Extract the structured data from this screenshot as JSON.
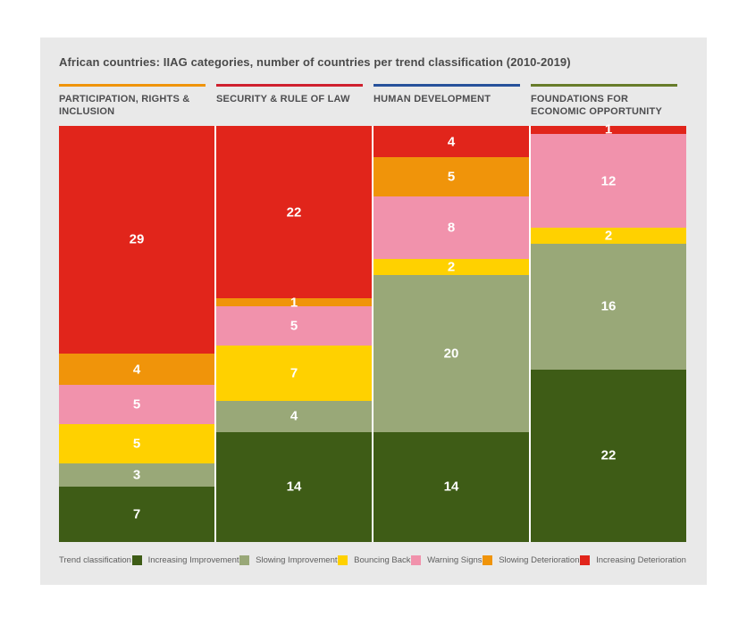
{
  "title": "African countries: IIAG categories, number of countries per trend classification (2010-2019)",
  "legend": {
    "label": "Trend classification",
    "items": [
      {
        "label": "Increasing Improvement",
        "color": "#3E5C16"
      },
      {
        "label": "Slowing Improvement",
        "color": "#99A878"
      },
      {
        "label": "Bouncing Back",
        "color": "#FFD100"
      },
      {
        "label": "Warning Signs",
        "color": "#F192AC"
      },
      {
        "label": "Slowing Deterioration",
        "color": "#F0940A"
      },
      {
        "label": "Increasing Deterioration",
        "color": "#E1251B"
      }
    ]
  },
  "chart_data": {
    "type": "bar",
    "stacked": true,
    "orientation": "vertical",
    "stack_order": "top-to-bottom",
    "total_per_category": 53,
    "categories": [
      {
        "label": "PARTICIPATION, RIGHTS & INCLUSION",
        "underline_color": "#F0940A"
      },
      {
        "label": "SECURITY & RULE OF LAW",
        "underline_color": "#CF202E"
      },
      {
        "label": "HUMAN DEVELOPMENT",
        "underline_color": "#27519B"
      },
      {
        "label": "FOUNDATIONS FOR ECONOMIC OPPORTUNITY",
        "underline_color": "#677C2A"
      }
    ],
    "series": [
      {
        "name": "Increasing Deterioration",
        "color": "#E1251B",
        "values": [
          29,
          22,
          4,
          1
        ]
      },
      {
        "name": "Slowing Deterioration",
        "color": "#F0940A",
        "values": [
          4,
          1,
          5,
          0
        ]
      },
      {
        "name": "Warning Signs",
        "color": "#F192AC",
        "values": [
          5,
          5,
          8,
          12
        ]
      },
      {
        "name": "Bouncing Back",
        "color": "#FFD100",
        "values": [
          5,
          7,
          2,
          2
        ]
      },
      {
        "name": "Slowing Improvement",
        "color": "#99A878",
        "values": [
          3,
          4,
          20,
          16
        ]
      },
      {
        "name": "Increasing Improvement",
        "color": "#3E5C16",
        "values": [
          7,
          14,
          14,
          22
        ]
      }
    ]
  }
}
